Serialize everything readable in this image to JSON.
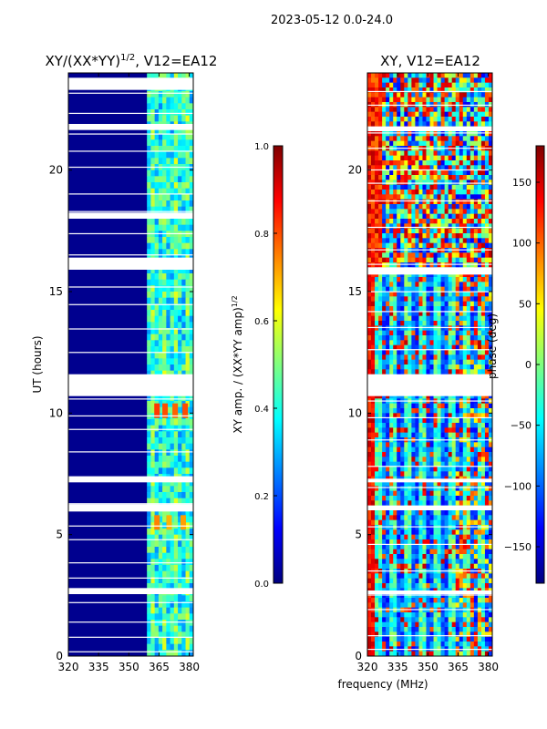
{
  "figure": {
    "suptitle": "2023-05-12 0.0-24.0",
    "xlabel": "frequency (MHz)"
  },
  "chart_data": [
    {
      "type": "heatmap",
      "title": "XY/(XX*YY)",
      "title_exp": "1/2",
      "title_suffix": ", V12=EA12",
      "xlabel": "",
      "ylabel": "UT (hours)",
      "xlim": [
        320,
        382
      ],
      "ylim": [
        0,
        24
      ],
      "xticks": [
        320,
        335,
        350,
        365,
        380
      ],
      "yticks": [
        0,
        5,
        10,
        15,
        20
      ],
      "colormap": "jet",
      "background_color": "#00008f",
      "feature_band_mhz": [
        359,
        382
      ],
      "feature_band_color": "#4ff0d0",
      "colorbar": {
        "label": "XY amp. / (XX*YY amp)",
        "label_exp": "1/2",
        "range": [
          0.0,
          1.0
        ],
        "ticks": [
          "0.0",
          "0.2",
          "0.4",
          "0.6",
          "0.8",
          "1.0"
        ]
      },
      "flagged_bands_hours": [
        [
          11.6,
          10.7
        ],
        [
          23.8,
          23.3
        ],
        [
          21.9,
          21.65
        ],
        [
          18.25,
          18.0
        ],
        [
          16.4,
          15.9
        ],
        [
          7.4,
          7.15
        ],
        [
          6.25,
          5.95
        ],
        [
          2.8,
          2.55
        ]
      ],
      "bright_spots": [
        {
          "t": 10.1,
          "f": 364,
          "v": 0.82
        },
        {
          "t": 10.1,
          "f": 368,
          "v": 0.8
        },
        {
          "t": 10.1,
          "f": 373,
          "v": 0.78
        },
        {
          "t": 10.1,
          "f": 378,
          "v": 0.8
        },
        {
          "t": 5.5,
          "f": 364,
          "v": 0.75
        },
        {
          "t": 5.5,
          "f": 370,
          "v": 0.7
        },
        {
          "t": 5.5,
          "f": 377,
          "v": 0.72
        }
      ]
    },
    {
      "type": "heatmap",
      "title": "XY, V12=EA12",
      "xlabel": "",
      "ylabel": "",
      "xlim": [
        320,
        382
      ],
      "ylim": [
        0,
        24
      ],
      "xticks": [
        320,
        335,
        350,
        365,
        380
      ],
      "yticks": [
        0,
        5,
        10,
        15,
        20
      ],
      "colormap": "jet",
      "colorbar": {
        "label": "phase (deg)",
        "range": [
          -180,
          180
        ],
        "ticks": [
          "150",
          "100",
          "50",
          "0",
          "−50",
          "−100",
          "−150"
        ],
        "tick_values": [
          150,
          100,
          50,
          0,
          -50,
          -100,
          -150
        ]
      },
      "flagged_bands_hours": [
        [
          11.6,
          10.7
        ],
        [
          21.8,
          21.6
        ],
        [
          16.0,
          15.7
        ],
        [
          7.3,
          7.15
        ],
        [
          6.2,
          6.0
        ],
        [
          2.7,
          2.55
        ]
      ]
    }
  ]
}
